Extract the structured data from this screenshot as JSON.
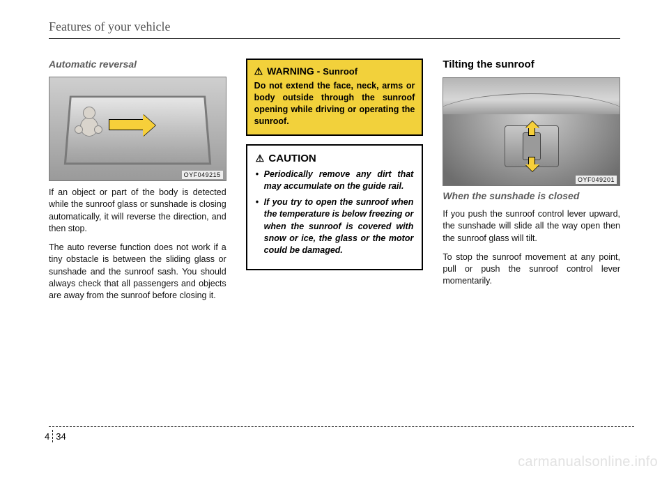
{
  "header": {
    "title": "Features of your vehicle"
  },
  "col1": {
    "subhead": "Automatic reversal",
    "figure_code": "OYF049215",
    "p1": "If an object or part of the body is detected while the sunroof glass or sunshade is closing automatically, it will reverse the direction, and then stop.",
    "p2": "The auto reverse function does not work if a tiny obstacle is between the sliding glass or sunshade and the sunroof sash. You should always check that all passengers and objects are away from the sunroof before closing it."
  },
  "col2": {
    "warning": {
      "title_main": "WARNING -",
      "title_sub": "Sunroof",
      "text": "Do not extend the face, neck, arms or body outside through the sunroof opening while driving or operating the sunroof."
    },
    "caution": {
      "title": "CAUTION",
      "items": [
        "Periodically remove any dirt that may accumulate on the guide rail.",
        "If you try to open the sunroof when the temperature is below freezing or when the sunroof is covered with snow or ice, the glass or the motor could be damaged."
      ]
    }
  },
  "col3": {
    "title": "Tilting the sunroof",
    "figure_code": "OYF049201",
    "subhead": "When the sunshade is closed",
    "p1": "If you push the sunroof control lever upward, the sunshade will slide all the way open then the sunroof glass will tilt.",
    "p2": "To stop the sunroof movement at any point, pull or push the sunroof control lever momentarily."
  },
  "footer": {
    "chapter": "4",
    "page": "34"
  },
  "watermark": "carmanualsonline.info",
  "colors": {
    "warning_bg": "#f2d13b",
    "arrow_fill": "#f6cf3a"
  }
}
